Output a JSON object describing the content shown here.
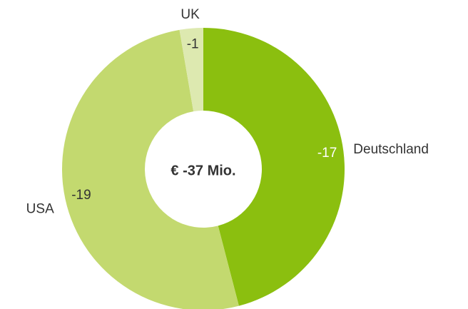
{
  "chart_data": {
    "type": "donut",
    "center_label": "€ -37 Mio.",
    "categories": [
      "Deutschland",
      "USA",
      "UK"
    ],
    "values": [
      -17,
      -19,
      -1
    ],
    "colors": [
      "#8bbf0f",
      "#c3d96f",
      "#dde9b0"
    ],
    "value_label_colors": [
      "#ffffff",
      "#333333",
      "#333333"
    ]
  }
}
